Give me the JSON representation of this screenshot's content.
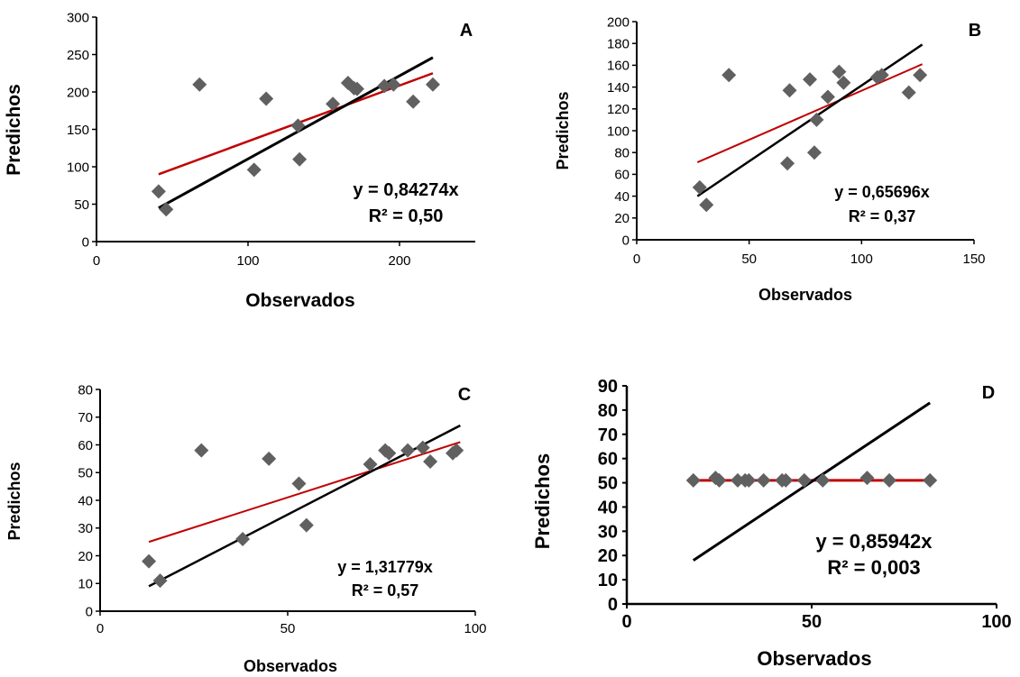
{
  "colors": {
    "marker": "#606060",
    "identity_line": "#000000",
    "regression_line": "#c00000",
    "axis": "#000000"
  },
  "chart_data": [
    {
      "panel": "A",
      "type": "scatter",
      "xlabel": "Observados",
      "ylabel": "Predichos",
      "xlim": [
        0,
        250
      ],
      "ylim": [
        0,
        300
      ],
      "xticks": [
        0,
        100,
        200
      ],
      "yticks": [
        0,
        50,
        100,
        150,
        200,
        250,
        300
      ],
      "points": [
        [
          41,
          67
        ],
        [
          46,
          43
        ],
        [
          68,
          210
        ],
        [
          104,
          96
        ],
        [
          112,
          191
        ],
        [
          133,
          155
        ],
        [
          134,
          110
        ],
        [
          156,
          184
        ],
        [
          166,
          212
        ],
        [
          170,
          205
        ],
        [
          172,
          204
        ],
        [
          190,
          208
        ],
        [
          196,
          210
        ],
        [
          209,
          187
        ],
        [
          222,
          210
        ]
      ],
      "identity_line": [
        [
          41,
          45
        ],
        [
          222,
          246
        ]
      ],
      "regression_line": [
        [
          41,
          90
        ],
        [
          222,
          225
        ]
      ],
      "equation": "y = 0,84274x",
      "r2": "R² = 0,50"
    },
    {
      "panel": "B",
      "type": "scatter",
      "xlabel": "Observados",
      "ylabel": "Predichos",
      "xlim": [
        0,
        150
      ],
      "ylim": [
        0,
        200
      ],
      "xticks": [
        0,
        50,
        100,
        150
      ],
      "yticks": [
        0,
        20,
        40,
        60,
        80,
        100,
        120,
        140,
        160,
        180,
        200
      ],
      "points": [
        [
          28,
          48
        ],
        [
          31,
          32
        ],
        [
          41,
          151
        ],
        [
          67,
          70
        ],
        [
          68,
          137
        ],
        [
          77,
          147
        ],
        [
          79,
          80
        ],
        [
          80,
          110
        ],
        [
          85,
          131
        ],
        [
          90,
          154
        ],
        [
          92,
          144
        ],
        [
          107,
          149
        ],
        [
          109,
          151
        ],
        [
          121,
          135
        ],
        [
          126,
          151
        ]
      ],
      "identity_line": [
        [
          27,
          40
        ],
        [
          127,
          179
        ]
      ],
      "regression_line": [
        [
          27,
          71
        ],
        [
          127,
          161
        ]
      ],
      "equation": "y = 0,65696x",
      "r2": "R² = 0,37"
    },
    {
      "panel": "C",
      "type": "scatter",
      "xlabel": "Observados",
      "ylabel": "Predichos",
      "xlim": [
        0,
        100
      ],
      "ylim": [
        0,
        80
      ],
      "xticks": [
        0,
        50,
        100
      ],
      "yticks": [
        0,
        10,
        20,
        30,
        40,
        50,
        60,
        70,
        80
      ],
      "points": [
        [
          13,
          18
        ],
        [
          16,
          11
        ],
        [
          27,
          58
        ],
        [
          38,
          26
        ],
        [
          45,
          55
        ],
        [
          53,
          46
        ],
        [
          55,
          31
        ],
        [
          72,
          53
        ],
        [
          76,
          58
        ],
        [
          77,
          57
        ],
        [
          82,
          58
        ],
        [
          86,
          59
        ],
        [
          88,
          54
        ],
        [
          94,
          57
        ],
        [
          95,
          58
        ]
      ],
      "identity_line": [
        [
          13,
          9
        ],
        [
          96,
          67
        ]
      ],
      "regression_line": [
        [
          13,
          25
        ],
        [
          96,
          61
        ]
      ],
      "equation": "y = 1,31779x",
      "r2": "R² = 0,57"
    },
    {
      "panel": "D",
      "type": "scatter",
      "xlabel": "Observados",
      "ylabel": "Predichos",
      "xlim": [
        0,
        100
      ],
      "ylim": [
        0,
        90
      ],
      "xticks": [
        0,
        50,
        100
      ],
      "yticks": [
        0,
        10,
        20,
        30,
        40,
        50,
        60,
        70,
        80,
        90
      ],
      "points": [
        [
          18,
          51
        ],
        [
          24,
          52
        ],
        [
          25,
          51
        ],
        [
          30,
          51
        ],
        [
          32,
          51
        ],
        [
          33,
          51
        ],
        [
          37,
          51
        ],
        [
          42,
          51
        ],
        [
          43,
          51
        ],
        [
          48,
          51
        ],
        [
          53,
          51
        ],
        [
          65,
          52
        ],
        [
          71,
          51
        ],
        [
          82,
          51
        ]
      ],
      "identity_line": [
        [
          18,
          18
        ],
        [
          82,
          83
        ]
      ],
      "regression_line": [
        [
          18,
          51
        ],
        [
          82,
          51
        ]
      ],
      "equation": "y = 0,85942x",
      "r2": "R² = 0,003"
    }
  ]
}
